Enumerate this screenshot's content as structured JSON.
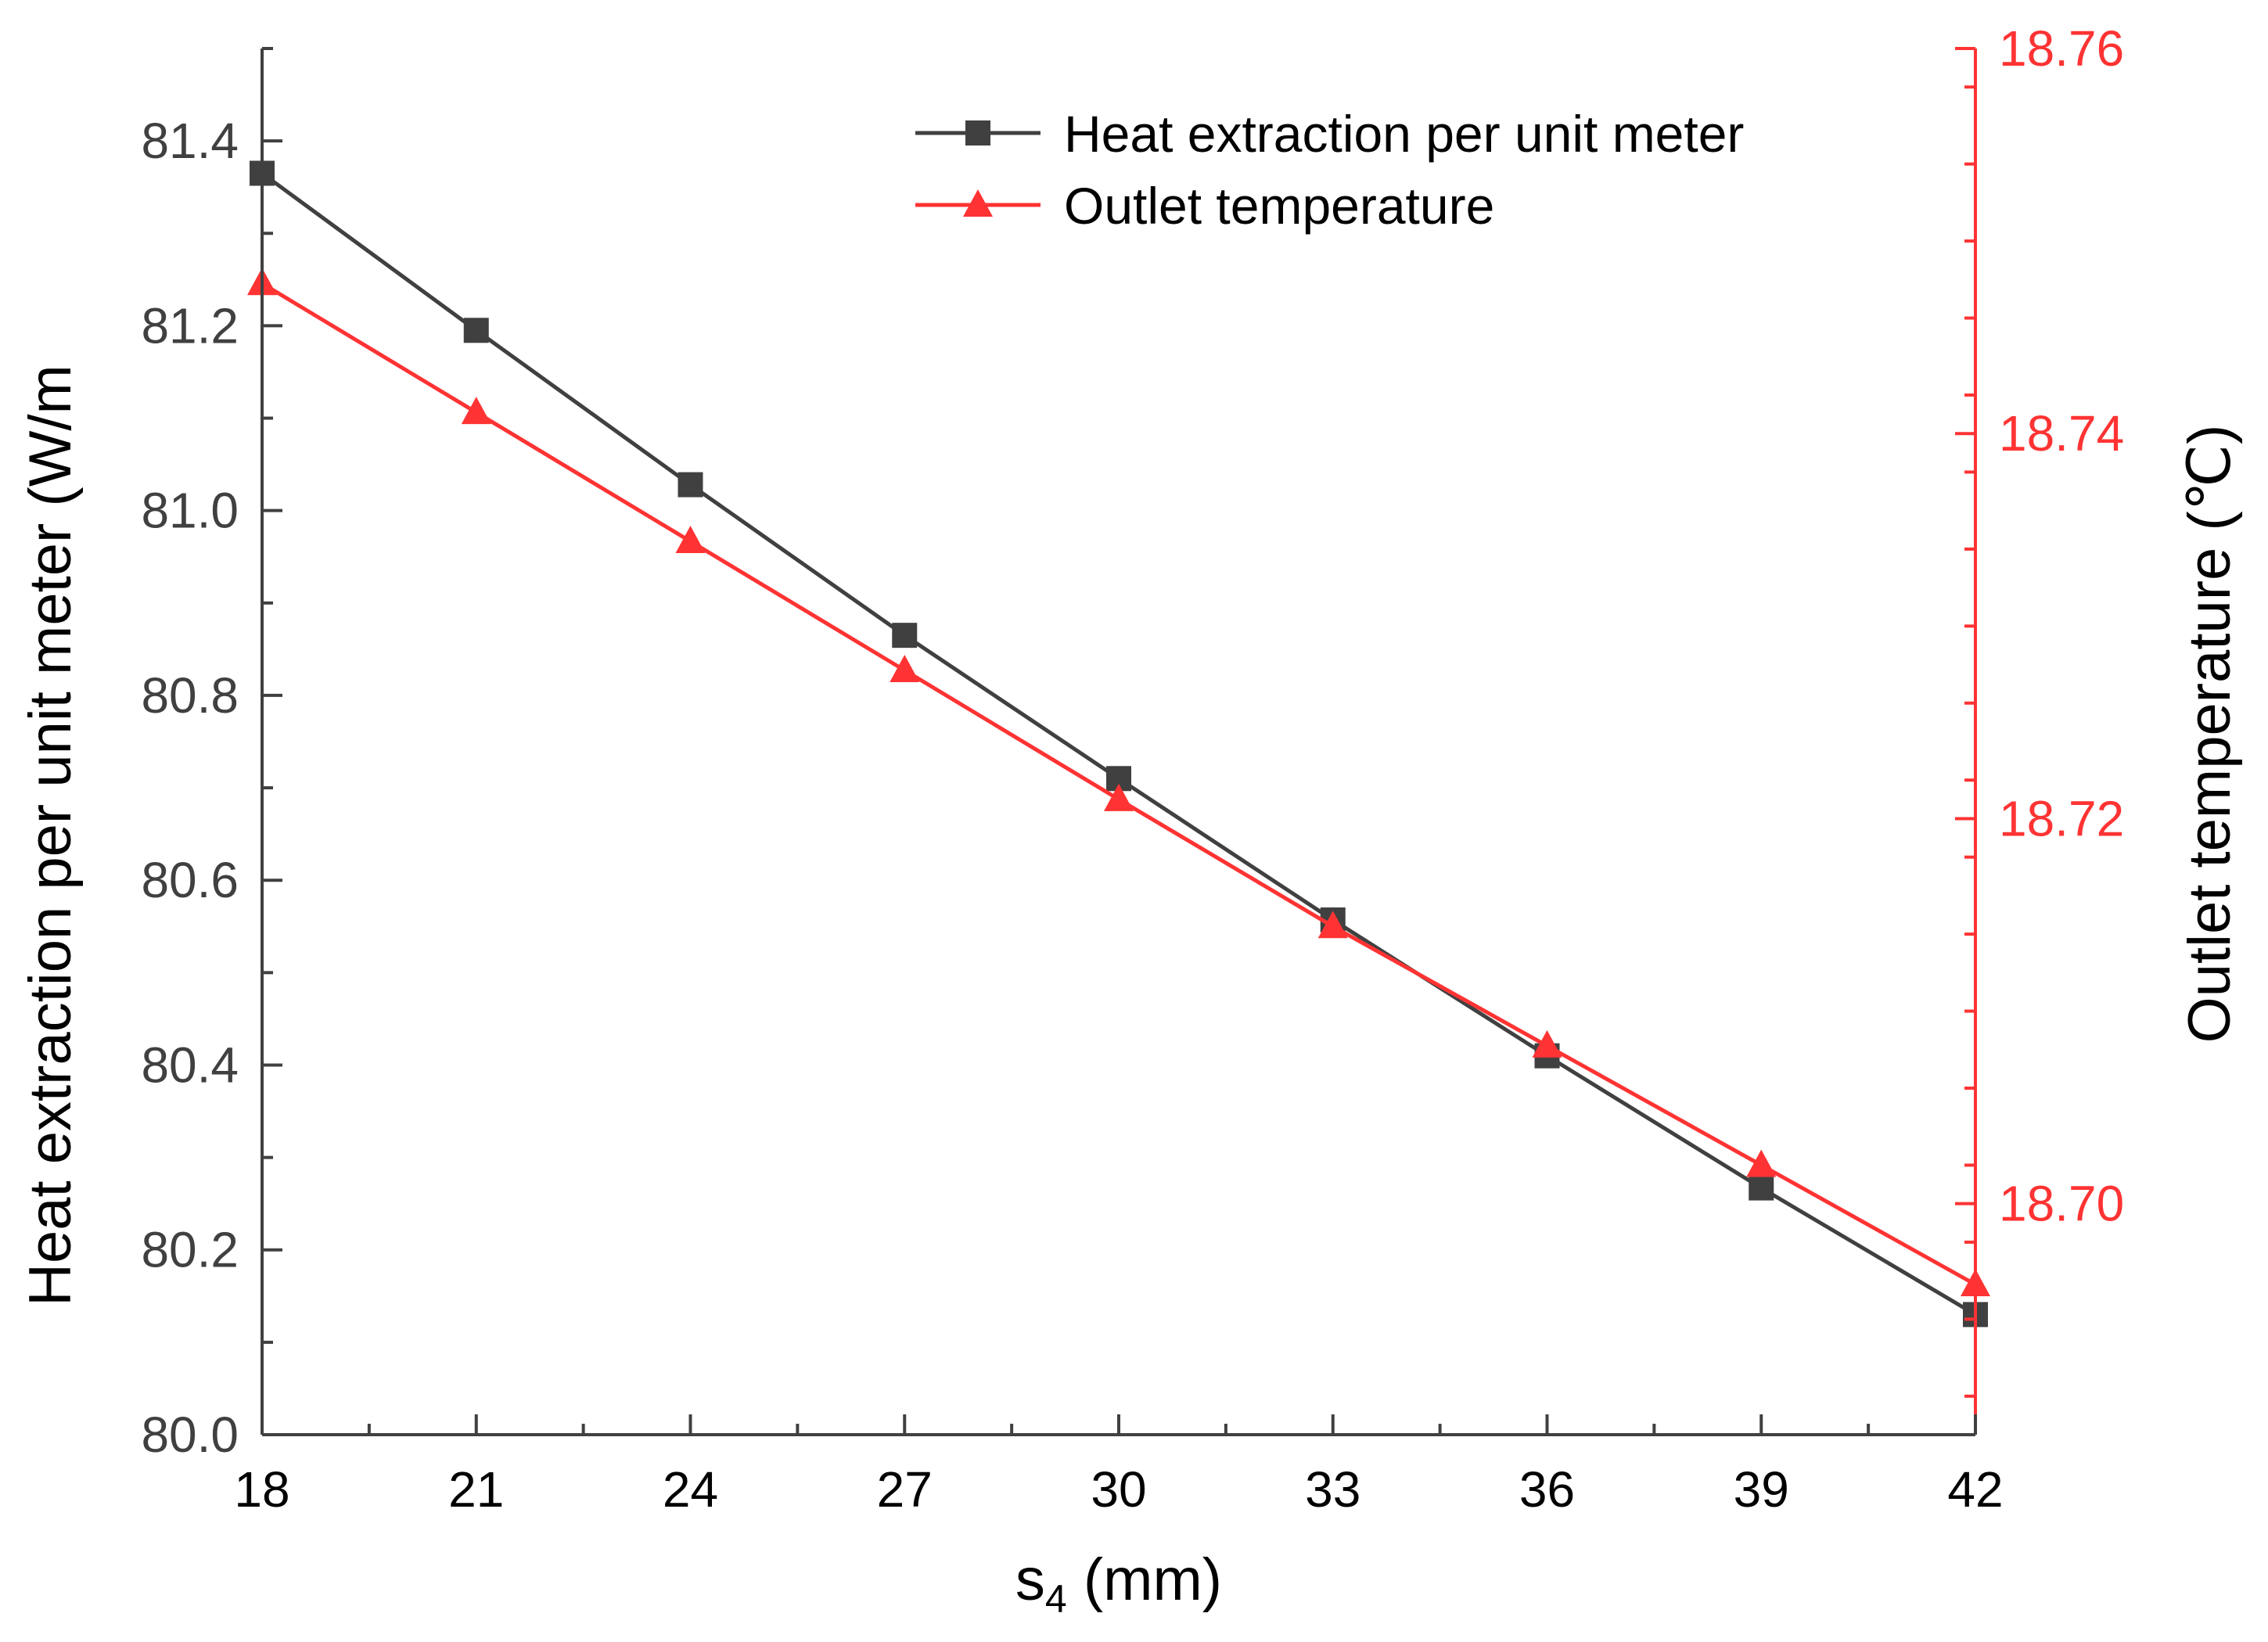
{
  "chart_data": {
    "type": "line",
    "title": "",
    "xlabel": "s",
    "xlabel_subscript": "4",
    "xlabel_unit": " (mm)",
    "ylabel_left": "Heat extraction per unit meter (W/m",
    "ylabel_right": "Outlet temperature (℃)",
    "xlim": [
      18,
      42
    ],
    "ylim_left": [
      80.0,
      81.5
    ],
    "ylim_right": [
      18.688,
      18.76
    ],
    "x_ticks": [
      "18",
      "21",
      "24",
      "27",
      "30",
      "33",
      "36",
      "39",
      "42"
    ],
    "y_left_ticks": [
      "80.0",
      "80.2",
      "80.4",
      "80.6",
      "80.8",
      "81.0",
      "81.2",
      "81.4"
    ],
    "y_right_ticks": [
      "18.70",
      "18.72",
      "18.74",
      "18.76"
    ],
    "x": [
      18,
      21,
      24,
      27,
      30,
      33,
      36,
      39,
      42
    ],
    "series": [
      {
        "name": "Heat extraction per unit meter",
        "axis": "left",
        "marker": "square",
        "color": "#404040",
        "values": [
          81.365,
          81.195,
          81.028,
          80.865,
          80.71,
          80.557,
          80.41,
          80.267,
          80.13
        ]
      },
      {
        "name": "Outlet temperature",
        "axis": "right",
        "marker": "triangle",
        "color": "#ff3333",
        "values": [
          18.7478,
          18.7411,
          18.7344,
          18.7277,
          18.721,
          18.7144,
          18.7082,
          18.702,
          18.6958
        ]
      }
    ],
    "legend_position": "top-right",
    "grid": false
  }
}
